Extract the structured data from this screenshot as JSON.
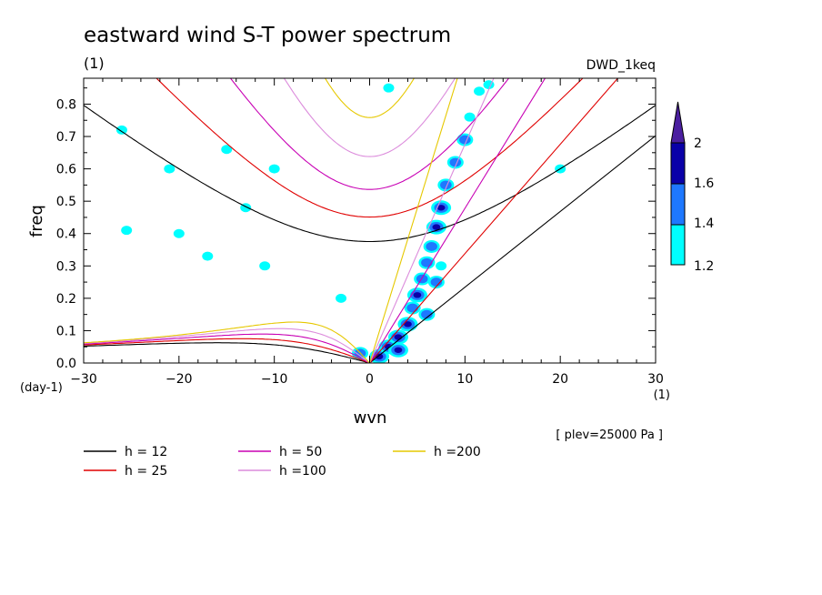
{
  "chart_data": {
    "type": "contour",
    "title": "eastward wind S-T power spectrum",
    "subtitle_left": "(1)",
    "subtitle_right": "DWD_1keq",
    "xlabel": "wvn",
    "ylabel": "freq",
    "x_unit": "(1)",
    "y_unit": "(day-1)",
    "annotation": "[ plev=25000 Pa ]",
    "xlim": [
      -30,
      30
    ],
    "ylim": [
      0,
      0.88
    ],
    "x_ticks": [
      -30,
      -20,
      -10,
      0,
      10,
      20,
      30
    ],
    "y_ticks": [
      0.0,
      0.1,
      0.2,
      0.3,
      0.4,
      0.5,
      0.6,
      0.7,
      0.8
    ],
    "y_tick_labels": [
      "0.0",
      "0.1",
      "0.2",
      "0.3",
      "0.4",
      "0.5",
      "0.6",
      "0.7",
      "0.8"
    ],
    "colorbar": {
      "levels": [
        1.2,
        1.4,
        1.6,
        2
      ],
      "labels": [
        "1.2",
        "1.4",
        "1.6",
        "2"
      ],
      "colors": [
        "#00ffff",
        "#1e78ff",
        "#0a00a8",
        "#4b1fa0"
      ]
    },
    "dispersion_curves": [
      {
        "label": "h = 12",
        "h": 12,
        "color": "#000000"
      },
      {
        "label": "h = 25",
        "h": 25,
        "color": "#e00000"
      },
      {
        "label": "h = 50",
        "h": 50,
        "color": "#c800b4"
      },
      {
        "label": "h =100",
        "h": 100,
        "color": "#dc8cdc"
      },
      {
        "label": "h =200",
        "h": 200,
        "color": "#e6c800"
      }
    ],
    "power_blobs": [
      {
        "x": 1.0,
        "y": 0.02,
        "level": 3
      },
      {
        "x": 2.0,
        "y": 0.05,
        "level": 3
      },
      {
        "x": 3.0,
        "y": 0.08,
        "level": 3
      },
      {
        "x": 4.0,
        "y": 0.12,
        "level": 3
      },
      {
        "x": 4.5,
        "y": 0.17,
        "level": 2
      },
      {
        "x": 5.0,
        "y": 0.21,
        "level": 3
      },
      {
        "x": 5.5,
        "y": 0.26,
        "level": 2
      },
      {
        "x": 6.0,
        "y": 0.31,
        "level": 2
      },
      {
        "x": 6.5,
        "y": 0.36,
        "level": 2
      },
      {
        "x": 7.0,
        "y": 0.42,
        "level": 3
      },
      {
        "x": 7.5,
        "y": 0.48,
        "level": 3
      },
      {
        "x": 8.0,
        "y": 0.55,
        "level": 2
      },
      {
        "x": 9.0,
        "y": 0.62,
        "level": 2
      },
      {
        "x": 10.0,
        "y": 0.69,
        "level": 2
      },
      {
        "x": 10.5,
        "y": 0.76,
        "level": 1
      },
      {
        "x": 11.5,
        "y": 0.84,
        "level": 1
      },
      {
        "x": 7.0,
        "y": 0.25,
        "level": 2
      },
      {
        "x": 7.5,
        "y": 0.3,
        "level": 1
      },
      {
        "x": 6.0,
        "y": 0.15,
        "level": 2
      },
      {
        "x": 3.0,
        "y": 0.04,
        "level": 3
      },
      {
        "x": -1.0,
        "y": 0.03,
        "level": 2
      },
      {
        "x": -3.0,
        "y": 0.2,
        "level": 1
      },
      {
        "x": -25.5,
        "y": 0.41,
        "level": 1
      },
      {
        "x": -20.0,
        "y": 0.4,
        "level": 1
      },
      {
        "x": -17.0,
        "y": 0.33,
        "level": 1
      },
      {
        "x": -11.0,
        "y": 0.3,
        "level": 1
      },
      {
        "x": -13.0,
        "y": 0.48,
        "level": 1
      },
      {
        "x": -26.0,
        "y": 0.72,
        "level": 1
      },
      {
        "x": -21.0,
        "y": 0.6,
        "level": 1
      },
      {
        "x": -15.0,
        "y": 0.66,
        "level": 1
      },
      {
        "x": -10.0,
        "y": 0.6,
        "level": 1
      },
      {
        "x": 2.0,
        "y": 0.85,
        "level": 1
      },
      {
        "x": 12.5,
        "y": 0.86,
        "level": 1
      },
      {
        "x": 20.0,
        "y": 0.6,
        "level": 1
      }
    ]
  }
}
